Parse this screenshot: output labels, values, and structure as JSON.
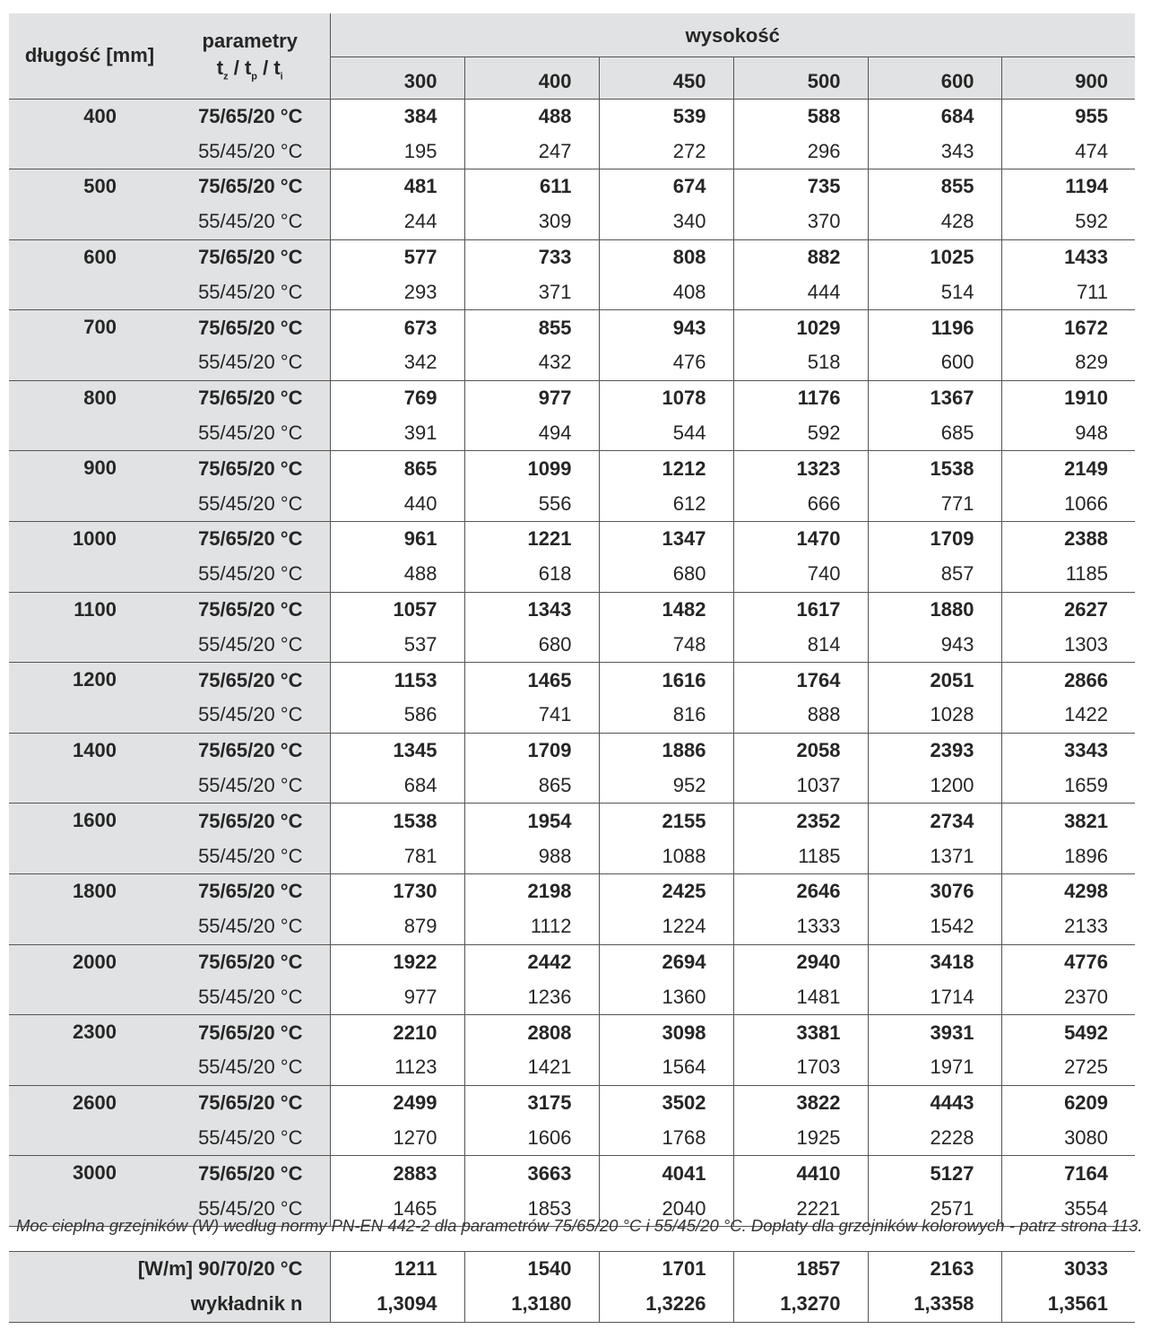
{
  "header": {
    "length_label": "długość [mm]",
    "params_label": "parametry",
    "params_sub": {
      "t1": "t",
      "s1": "z",
      "t2": "t",
      "s2": "p",
      "t3": "t",
      "s3": "i",
      "sep": " / "
    },
    "height_label": "wysokość",
    "heights": [
      "300",
      "400",
      "450",
      "500",
      "600",
      "900"
    ]
  },
  "param_high": "75/65/20 °C",
  "param_low": "55/45/20 °C",
  "rows": [
    {
      "length": "400",
      "high": [
        "384",
        "488",
        "539",
        "588",
        "684",
        "955"
      ],
      "low": [
        "195",
        "247",
        "272",
        "296",
        "343",
        "474"
      ]
    },
    {
      "length": "500",
      "high": [
        "481",
        "611",
        "674",
        "735",
        "855",
        "1194"
      ],
      "low": [
        "244",
        "309",
        "340",
        "370",
        "428",
        "592"
      ]
    },
    {
      "length": "600",
      "high": [
        "577",
        "733",
        "808",
        "882",
        "1025",
        "1433"
      ],
      "low": [
        "293",
        "371",
        "408",
        "444",
        "514",
        "711"
      ]
    },
    {
      "length": "700",
      "high": [
        "673",
        "855",
        "943",
        "1029",
        "1196",
        "1672"
      ],
      "low": [
        "342",
        "432",
        "476",
        "518",
        "600",
        "829"
      ]
    },
    {
      "length": "800",
      "high": [
        "769",
        "977",
        "1078",
        "1176",
        "1367",
        "1910"
      ],
      "low": [
        "391",
        "494",
        "544",
        "592",
        "685",
        "948"
      ]
    },
    {
      "length": "900",
      "high": [
        "865",
        "1099",
        "1212",
        "1323",
        "1538",
        "2149"
      ],
      "low": [
        "440",
        "556",
        "612",
        "666",
        "771",
        "1066"
      ]
    },
    {
      "length": "1000",
      "high": [
        "961",
        "1221",
        "1347",
        "1470",
        "1709",
        "2388"
      ],
      "low": [
        "488",
        "618",
        "680",
        "740",
        "857",
        "1185"
      ]
    },
    {
      "length": "1100",
      "high": [
        "1057",
        "1343",
        "1482",
        "1617",
        "1880",
        "2627"
      ],
      "low": [
        "537",
        "680",
        "748",
        "814",
        "943",
        "1303"
      ]
    },
    {
      "length": "1200",
      "high": [
        "1153",
        "1465",
        "1616",
        "1764",
        "2051",
        "2866"
      ],
      "low": [
        "586",
        "741",
        "816",
        "888",
        "1028",
        "1422"
      ]
    },
    {
      "length": "1400",
      "high": [
        "1345",
        "1709",
        "1886",
        "2058",
        "2393",
        "3343"
      ],
      "low": [
        "684",
        "865",
        "952",
        "1037",
        "1200",
        "1659"
      ]
    },
    {
      "length": "1600",
      "high": [
        "1538",
        "1954",
        "2155",
        "2352",
        "2734",
        "3821"
      ],
      "low": [
        "781",
        "988",
        "1088",
        "1185",
        "1371",
        "1896"
      ]
    },
    {
      "length": "1800",
      "high": [
        "1730",
        "2198",
        "2425",
        "2646",
        "3076",
        "4298"
      ],
      "low": [
        "879",
        "1112",
        "1224",
        "1333",
        "1542",
        "2133"
      ]
    },
    {
      "length": "2000",
      "high": [
        "1922",
        "2442",
        "2694",
        "2940",
        "3418",
        "4776"
      ],
      "low": [
        "977",
        "1236",
        "1360",
        "1481",
        "1714",
        "2370"
      ]
    },
    {
      "length": "2300",
      "high": [
        "2210",
        "2808",
        "3098",
        "3381",
        "3931",
        "5492"
      ],
      "low": [
        "1123",
        "1421",
        "1564",
        "1703",
        "1971",
        "2725"
      ]
    },
    {
      "length": "2600",
      "high": [
        "2499",
        "3175",
        "3502",
        "3822",
        "4443",
        "6209"
      ],
      "low": [
        "1270",
        "1606",
        "1768",
        "1925",
        "2228",
        "3080"
      ]
    },
    {
      "length": "3000",
      "high": [
        "2883",
        "3663",
        "4041",
        "4410",
        "5127",
        "7164"
      ],
      "low": [
        "1465",
        "1853",
        "2040",
        "2221",
        "2571",
        "3554"
      ]
    }
  ],
  "note": "Moc cieplna grzejników (W) według normy PN-EN 442-2 dla parametrów 75/65/20 °C i 55/45/20 °C. Dopłaty dla grzejników kolorowych - patrz strona 113.",
  "summary": {
    "wm_label": "[W/m] 90/70/20 °C",
    "wm_values": [
      "1211",
      "1540",
      "1701",
      "1857",
      "2163",
      "3033"
    ],
    "n_label": "wykładnik n",
    "n_values": [
      "1,3094",
      "1,3180",
      "1,3226",
      "1,3270",
      "1,3358",
      "1,3561"
    ]
  },
  "colors": {
    "header_bg": "#e1e2e3",
    "text": "#262626",
    "rule": "#555555"
  }
}
